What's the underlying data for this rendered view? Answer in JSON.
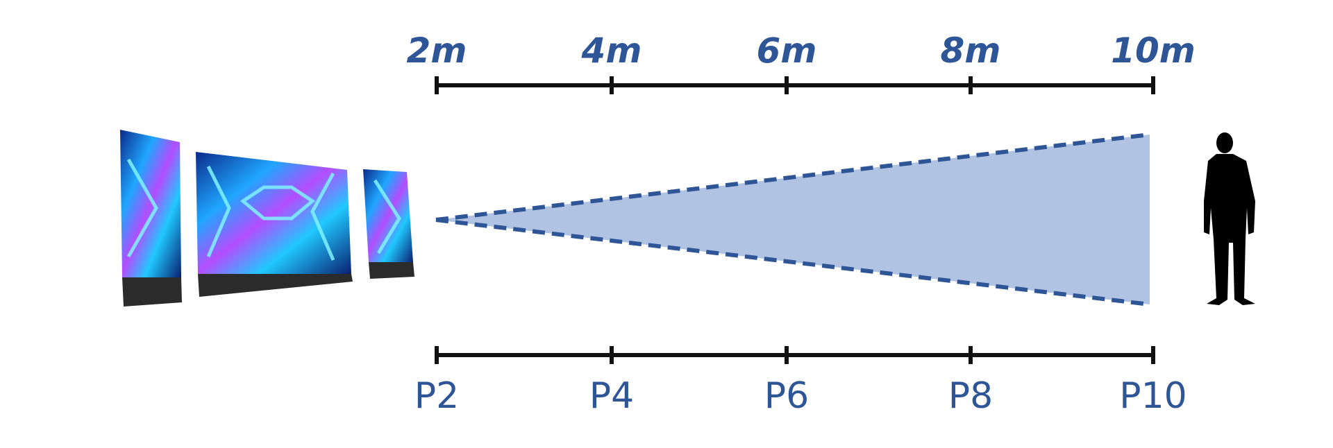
{
  "top_scale": {
    "labels": [
      "2m",
      "4m",
      "6m",
      "8m",
      "10m"
    ]
  },
  "bottom_scale": {
    "labels": [
      "P2",
      "P4",
      "P6",
      "P8",
      "P10"
    ]
  }
}
